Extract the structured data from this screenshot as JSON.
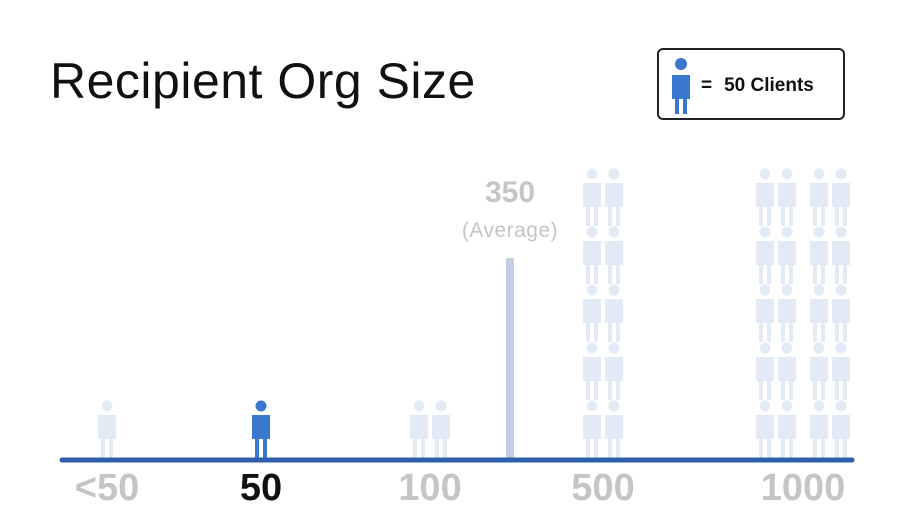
{
  "title": "Recipient Org Size",
  "legend": {
    "equals": "=",
    "label": "50 Clients"
  },
  "chart_data": {
    "type": "pictograph",
    "unit_clients_per_icon": 50,
    "categories": [
      "<50",
      "50",
      "100",
      "500",
      "1000"
    ],
    "icons": [
      1,
      1,
      2,
      10,
      20
    ],
    "highlighted": "50",
    "average": {
      "value": "350",
      "label": "(Average)"
    }
  },
  "colors": {
    "highlight": "#3a78d0",
    "faded": "#e2eaf6",
    "axis": "#2d5fac",
    "avg_line": "#c2d0e6",
    "muted_text": "#c5c5c5",
    "bold_text": "#111111"
  }
}
